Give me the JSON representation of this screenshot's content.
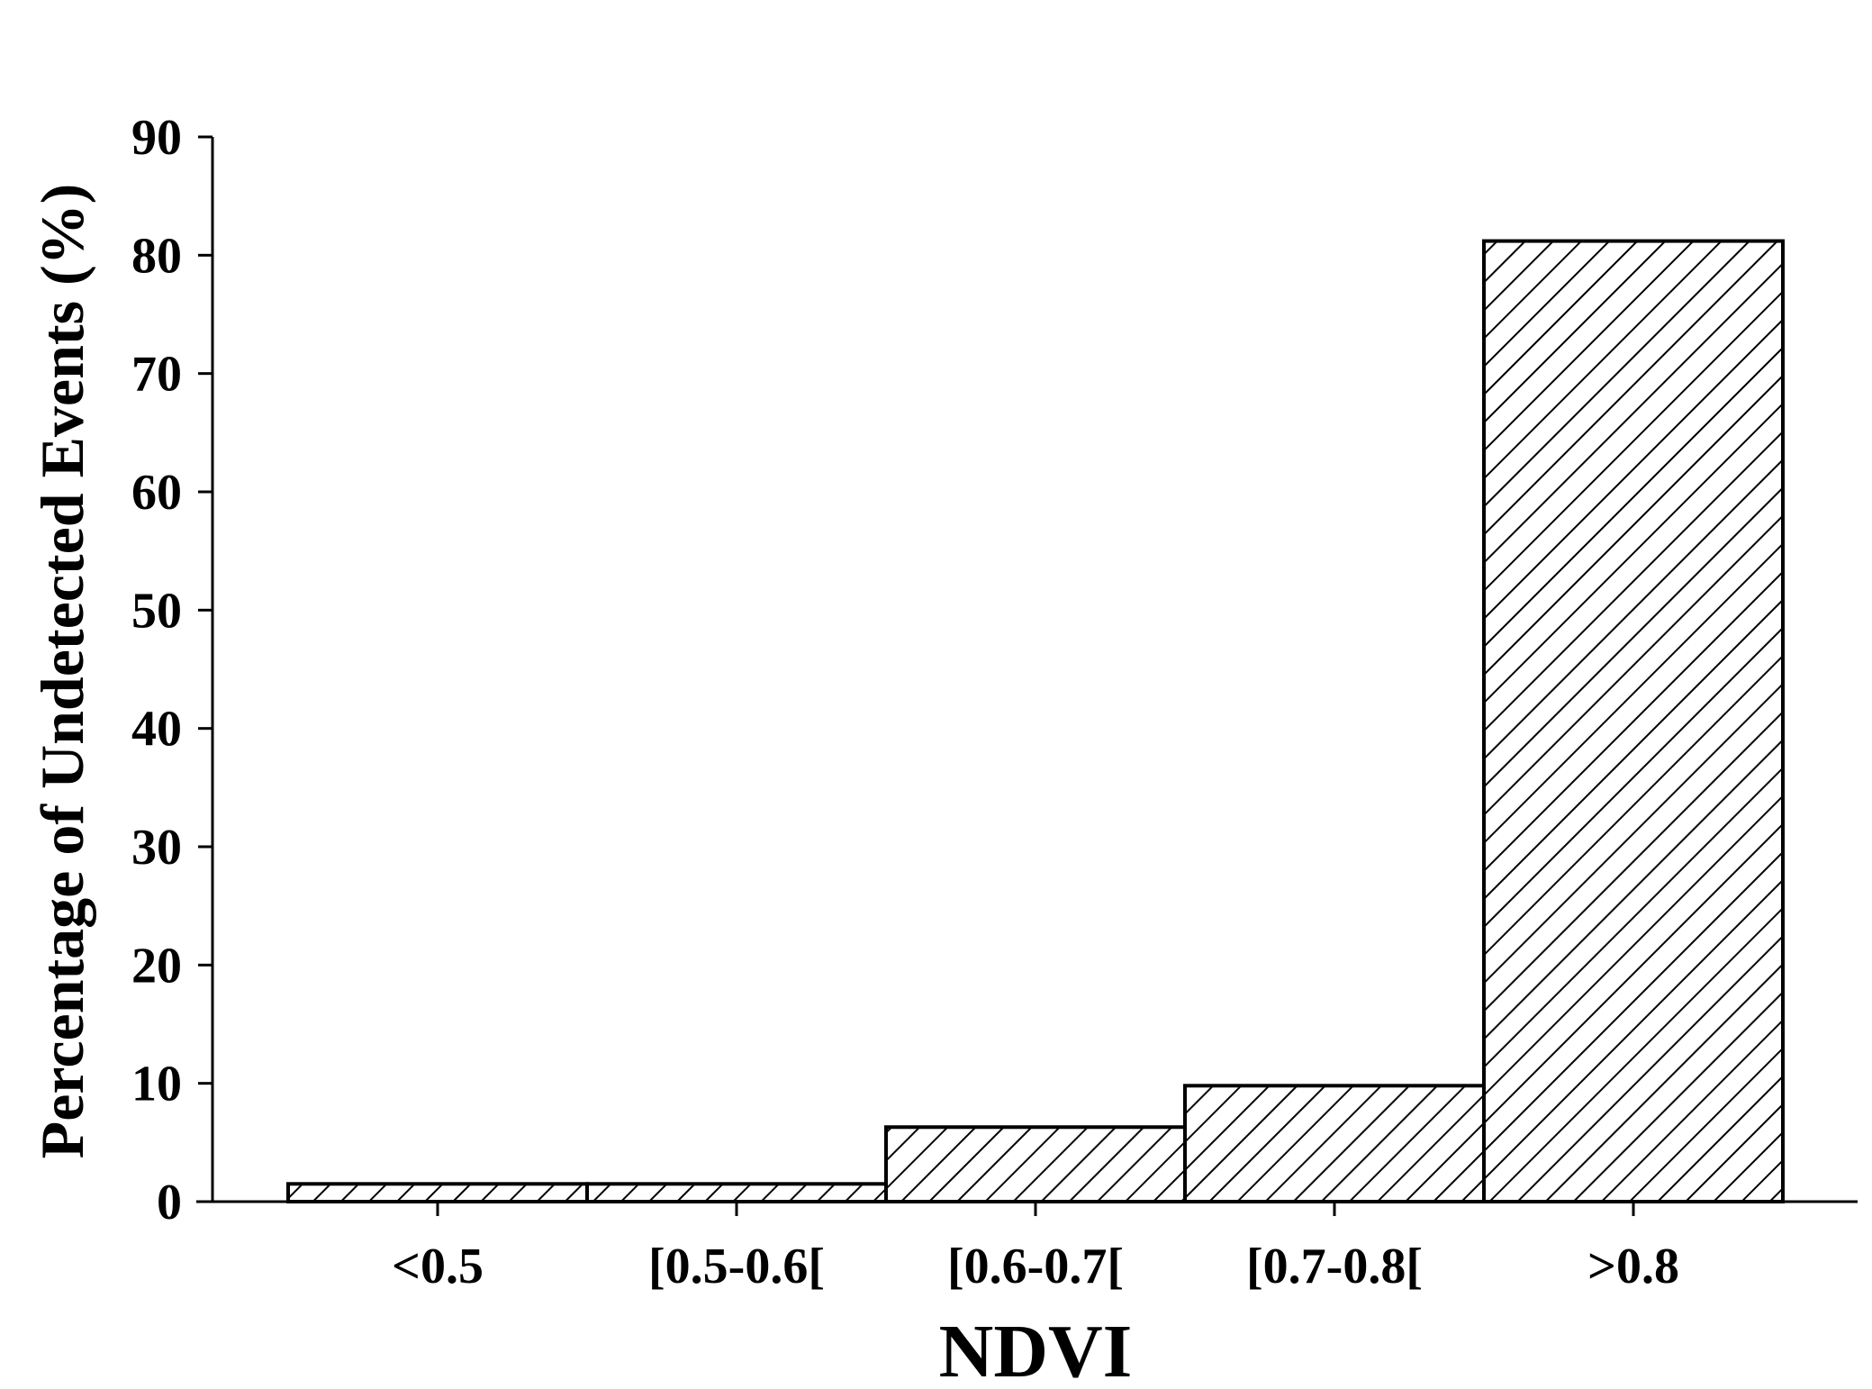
{
  "chart_data": {
    "type": "bar",
    "categories": [
      "<0.5",
      "[0.5-0.6[",
      "[0.6-0.7[",
      "[0.7-0.8[",
      ">0.8"
    ],
    "values": [
      1.5,
      1.5,
      6.3,
      9.8,
      81.2
    ],
    "xlabel": "NDVI",
    "ylabel": "Percentage of Undetected Events (%)",
    "ylim": [
      0,
      90
    ],
    "yticks": [
      0,
      10,
      20,
      30,
      40,
      50,
      60,
      70,
      80,
      90
    ],
    "grid": false,
    "bar_fill": "diagonal-hatch",
    "colors": {
      "bar_stroke": "#000000",
      "hatch": "#000000",
      "background": "#ffffff"
    }
  }
}
